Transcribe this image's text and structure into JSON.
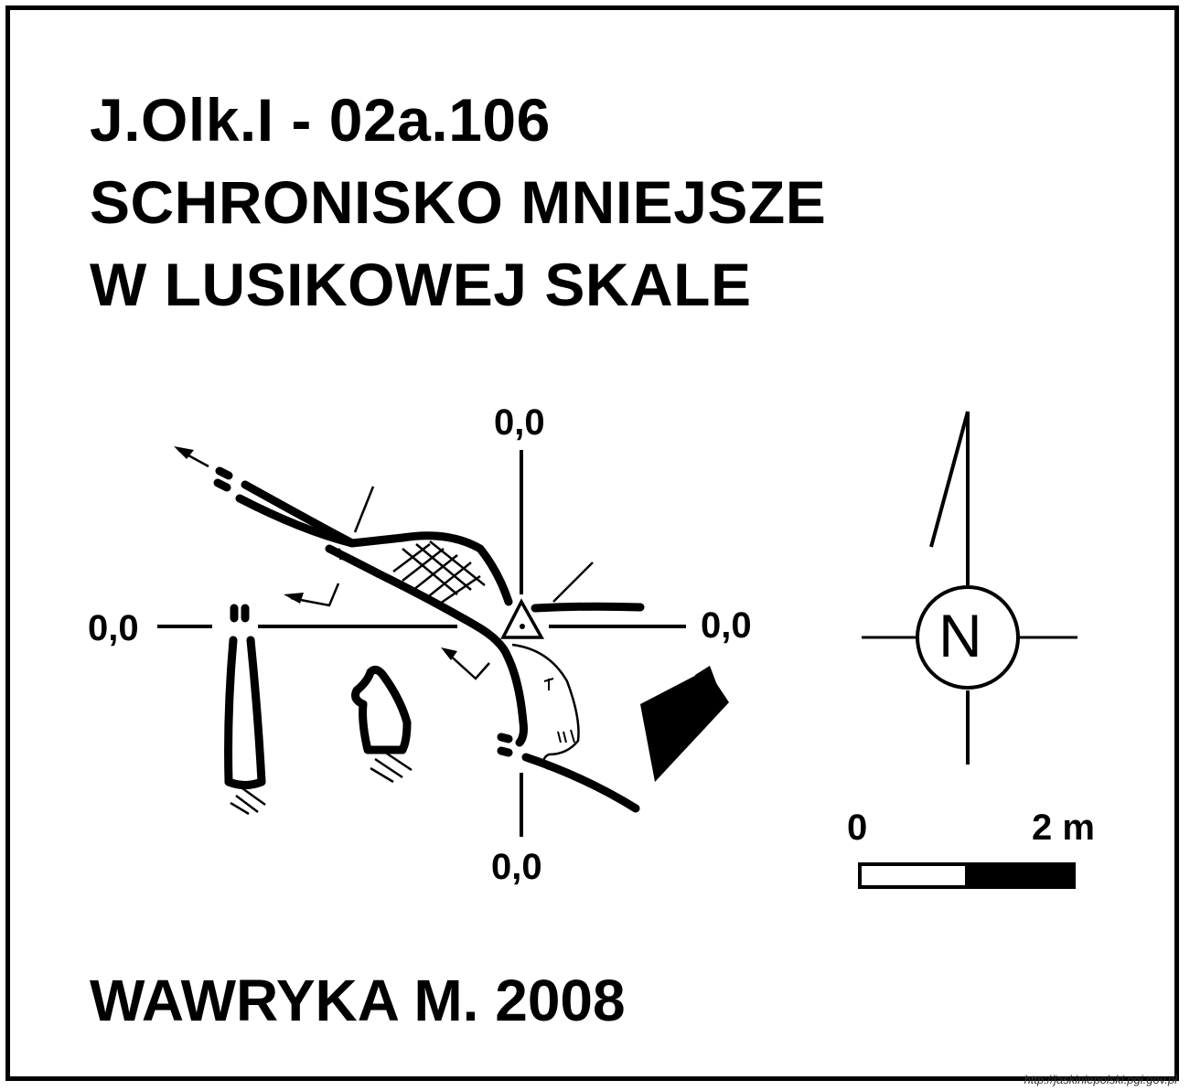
{
  "title": {
    "code": "J.Olk.I - 02a.106",
    "name_line1": "SCHRONISKO MNIEJSZE",
    "name_line2": "W LUSIKOWEJ SKALE"
  },
  "datum_labels": {
    "top": "0,0",
    "left": "0,0",
    "right": "0,0",
    "bottom": "0,0"
  },
  "north_arrow": {
    "letter": "N"
  },
  "scale_bar": {
    "start_label": "0",
    "end_label": "2 m"
  },
  "author": "WAWRYKA M. 2008",
  "source_url": "http://jaskiniepolski.pgi.gov.pl",
  "colors": {
    "ink": "#000000",
    "paper": "#ffffff"
  }
}
